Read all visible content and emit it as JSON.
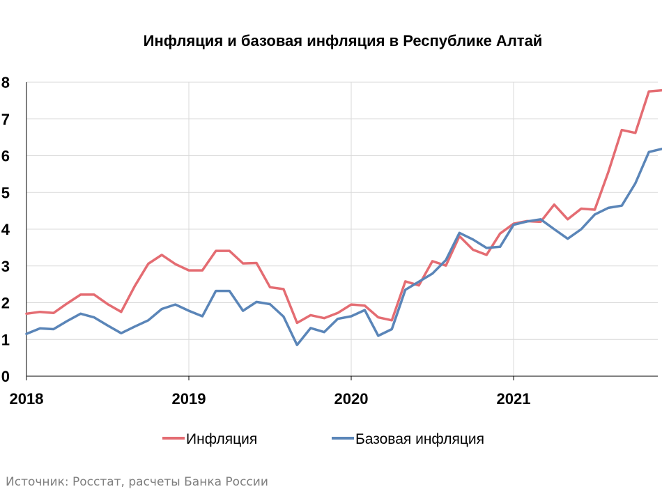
{
  "chart_data": {
    "type": "line",
    "title": "Инфляция и базовая инфляция в Республике Алтай",
    "xlabel": "",
    "ylabel": "",
    "ylim": [
      0,
      8
    ],
    "y_ticks": [
      "0",
      "1",
      "2",
      "3",
      "4",
      "5",
      "6",
      "7",
      "8"
    ],
    "x_ticks": [
      "2018",
      "2019",
      "2020",
      "2021"
    ],
    "grid": "vertical and horizontal",
    "legend_position": "bottom",
    "x": [
      "2018-01",
      "2018-02",
      "2018-03",
      "2018-04",
      "2018-05",
      "2018-06",
      "2018-07",
      "2018-08",
      "2018-09",
      "2018-10",
      "2018-11",
      "2018-12",
      "2019-01",
      "2019-02",
      "2019-03",
      "2019-04",
      "2019-05",
      "2019-06",
      "2019-07",
      "2019-08",
      "2019-09",
      "2019-10",
      "2019-11",
      "2019-12",
      "2020-01",
      "2020-02",
      "2020-03",
      "2020-04",
      "2020-05",
      "2020-06",
      "2020-07",
      "2020-08",
      "2020-09",
      "2020-10",
      "2020-11",
      "2020-12",
      "2021-01",
      "2021-02",
      "2021-03",
      "2021-04",
      "2021-05",
      "2021-06",
      "2021-07",
      "2021-08",
      "2021-09",
      "2021-10",
      "2021-11",
      "2021-12"
    ],
    "series": [
      {
        "name": "Инфляция",
        "color": "#e46c72",
        "values": [
          1.7,
          1.75,
          1.72,
          1.98,
          2.22,
          2.22,
          1.96,
          1.75,
          2.45,
          3.06,
          3.3,
          3.05,
          2.88,
          2.88,
          3.41,
          3.41,
          3.07,
          3.08,
          2.42,
          2.37,
          1.45,
          1.66,
          1.58,
          1.72,
          1.95,
          1.92,
          1.6,
          1.52,
          2.58,
          2.47,
          3.13,
          3.01,
          3.81,
          3.44,
          3.3,
          3.88,
          4.15,
          4.22,
          4.2,
          4.67,
          4.27,
          4.56,
          4.53,
          5.55,
          6.7,
          6.62,
          7.75,
          7.78
        ]
      },
      {
        "name": "Базовая инфляция",
        "color": "#5a85b8",
        "values": [
          1.15,
          1.3,
          1.28,
          1.5,
          1.7,
          1.6,
          1.38,
          1.17,
          1.35,
          1.52,
          1.83,
          1.95,
          1.78,
          1.63,
          2.32,
          2.32,
          1.78,
          2.02,
          1.96,
          1.62,
          0.85,
          1.31,
          1.2,
          1.56,
          1.63,
          1.8,
          1.1,
          1.28,
          2.35,
          2.57,
          2.79,
          3.16,
          3.9,
          3.72,
          3.49,
          3.52,
          4.12,
          4.21,
          4.27,
          4.0,
          3.74,
          4.0,
          4.4,
          4.58,
          4.64,
          5.25,
          6.1,
          6.19
        ]
      }
    ]
  },
  "source_note": "Источник: Росстат, расчеты Банка России"
}
